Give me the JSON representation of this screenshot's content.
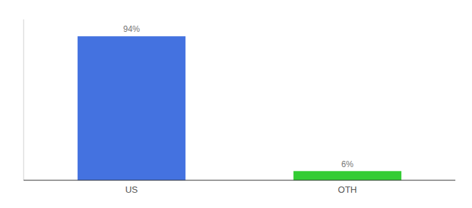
{
  "chart_data": {
    "type": "bar",
    "categories": [
      "US",
      "OTH"
    ],
    "values": [
      94,
      6
    ],
    "value_labels": [
      "94%",
      "6%"
    ],
    "colors": [
      "#4472e0",
      "#33cc33"
    ],
    "ylim": [
      0,
      105
    ],
    "yticks": [],
    "data_labels": true,
    "tick_labels": "x",
    "grid": false
  }
}
